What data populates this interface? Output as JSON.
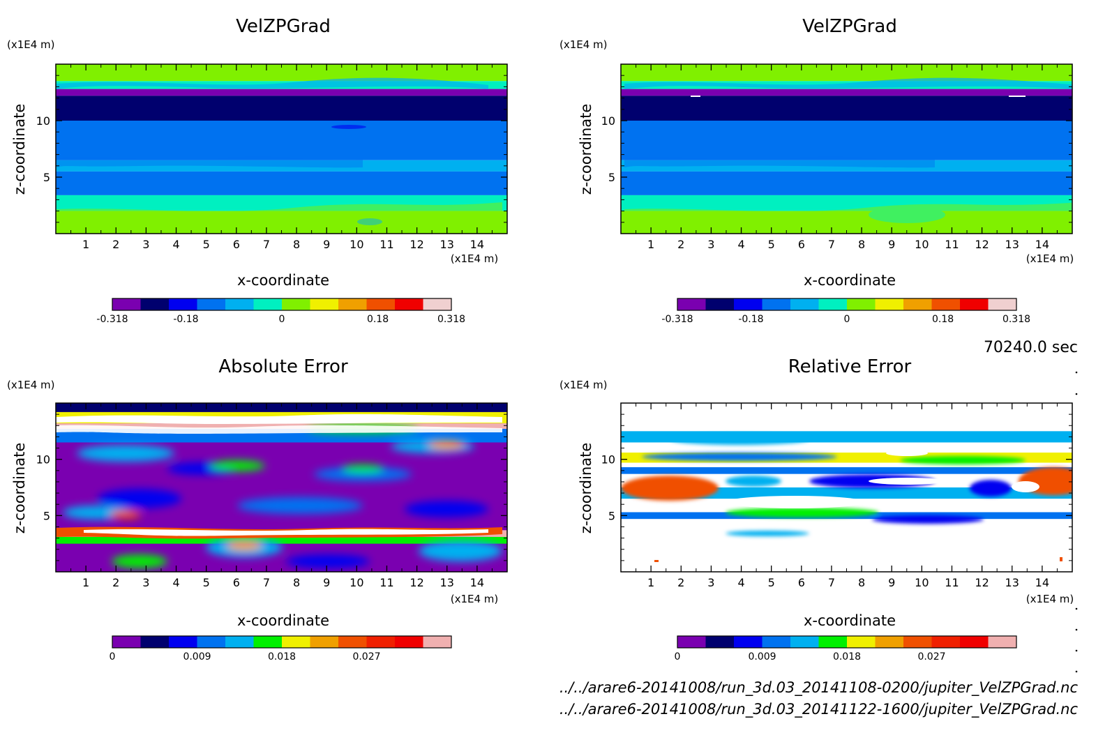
{
  "figure": {
    "time_label": "70240.0 sec",
    "file_paths": [
      "../../arare6-20141008/run_3d.03_20141108-0200/jupiter_VelZPGrad.nc",
      "../../arare6-20141008/run_3d.03_20141122-1600/jupiter_VelZPGrad.nc"
    ]
  },
  "chart_data": [
    {
      "type": "heatmap",
      "title": "VelZPGrad",
      "xlabel": "x-coordinate",
      "ylabel": "z-coordinate",
      "x_unit": "(x1E4 m)",
      "y_unit": "(x1E4 m)",
      "xlim": [
        0,
        15
      ],
      "ylim": [
        0,
        15
      ],
      "x_ticks": [
        1,
        2,
        3,
        4,
        5,
        6,
        7,
        8,
        9,
        10,
        11,
        12,
        13,
        14
      ],
      "y_ticks": [
        5,
        10
      ],
      "colorbar_levels": [
        -0.318,
        -0.265,
        -0.212,
        -0.159,
        -0.106,
        -0.053,
        0,
        0.053,
        0.106,
        0.159,
        0.212,
        0.265,
        0.318
      ],
      "colorbar_tick_labels": [
        "-0.318",
        "-0.18",
        "0",
        "0.18",
        "0.318"
      ],
      "colorbar_colors": [
        "#7a00b0",
        "#00006e",
        "#0000f0",
        "#0072f0",
        "#00b0f0",
        "#00f0c0",
        "#80f000",
        "#f0f000",
        "#f0a000",
        "#f05000",
        "#f00000",
        "#f0d0d0"
      ],
      "bands": [
        {
          "z_from": 13.5,
          "z_to": 15,
          "value": 0.05
        },
        {
          "z_from": 12.8,
          "z_to": 13.5,
          "value": -0.02
        },
        {
          "z_from": 12.2,
          "z_to": 12.8,
          "value": -0.3
        },
        {
          "z_from": 10,
          "z_to": 12.2,
          "value": -0.24
        },
        {
          "z_from": 6.5,
          "z_to": 10,
          "value": -0.14
        },
        {
          "z_from": 5.5,
          "z_to": 6.5,
          "value": -0.09
        },
        {
          "z_from": 3.4,
          "z_to": 5.5,
          "value": -0.12
        },
        {
          "z_from": 2,
          "z_to": 3.4,
          "value": -0.03
        },
        {
          "z_from": 0,
          "z_to": 2,
          "value": 0.05
        }
      ]
    },
    {
      "type": "heatmap",
      "title": "VelZPGrad",
      "xlabel": "x-coordinate",
      "ylabel": "z-coordinate",
      "x_unit": "(x1E4 m)",
      "y_unit": "(x1E4 m)",
      "xlim": [
        0,
        15
      ],
      "ylim": [
        0,
        15
      ],
      "x_ticks": [
        1,
        2,
        3,
        4,
        5,
        6,
        7,
        8,
        9,
        10,
        11,
        12,
        13,
        14
      ],
      "y_ticks": [
        5,
        10
      ],
      "colorbar_levels": [
        -0.318,
        -0.265,
        -0.212,
        -0.159,
        -0.106,
        -0.053,
        0,
        0.053,
        0.106,
        0.159,
        0.212,
        0.265,
        0.318
      ],
      "colorbar_tick_labels": [
        "-0.318",
        "-0.18",
        "0",
        "0.18",
        "0.318"
      ],
      "colorbar_colors": [
        "#7a00b0",
        "#00006e",
        "#0000f0",
        "#0072f0",
        "#00b0f0",
        "#00f0c0",
        "#80f000",
        "#f0f000",
        "#f0a000",
        "#f05000",
        "#f00000",
        "#f0d0d0"
      ],
      "bands": [
        {
          "z_from": 13.5,
          "z_to": 15,
          "value": 0.05
        },
        {
          "z_from": 12.8,
          "z_to": 13.5,
          "value": -0.02
        },
        {
          "z_from": 12.2,
          "z_to": 12.8,
          "value": -0.3
        },
        {
          "z_from": 10,
          "z_to": 12.2,
          "value": -0.24
        },
        {
          "z_from": 6.5,
          "z_to": 10,
          "value": -0.14
        },
        {
          "z_from": 5.5,
          "z_to": 6.5,
          "value": -0.09
        },
        {
          "z_from": 3.4,
          "z_to": 5.5,
          "value": -0.12
        },
        {
          "z_from": 2,
          "z_to": 3.4,
          "value": -0.03
        },
        {
          "z_from": 0,
          "z_to": 2,
          "value": 0.05
        }
      ]
    },
    {
      "type": "heatmap",
      "title": "Absolute Error",
      "xlabel": "x-coordinate",
      "ylabel": "z-coordinate",
      "x_unit": "(x1E4 m)",
      "y_unit": "(x1E4 m)",
      "xlim": [
        0,
        15
      ],
      "ylim": [
        0,
        15
      ],
      "x_ticks": [
        1,
        2,
        3,
        4,
        5,
        6,
        7,
        8,
        9,
        10,
        11,
        12,
        13,
        14
      ],
      "y_ticks": [
        5,
        10
      ],
      "colorbar_levels": [
        0,
        0.003,
        0.006,
        0.009,
        0.012,
        0.015,
        0.018,
        0.021,
        0.024,
        0.027,
        0.03,
        0.033,
        0.036
      ],
      "colorbar_tick_labels": [
        "0",
        "0.009",
        "0.018",
        "0.027"
      ],
      "colorbar_colors": [
        "#7a00b0",
        "#00006e",
        "#0000f0",
        "#0072f0",
        "#00b0f0",
        "#00f000",
        "#f0f000",
        "#f0a000",
        "#f05000",
        "#f02000",
        "#f00000",
        "#f0b0b0"
      ],
      "background": "#7a00b0",
      "bands": [
        {
          "z_from": 14.2,
          "z_to": 15,
          "value": 0.004
        },
        {
          "z_from": 13.2,
          "z_to": 14.2,
          "value": 0.02
        },
        {
          "z_from": 12.7,
          "z_to": 13.2,
          "value": 0.04
        },
        {
          "z_from": 11.5,
          "z_to": 12.7,
          "value": 0.011
        },
        {
          "z_from": 3.1,
          "z_to": 3.7,
          "value": 0.04
        },
        {
          "z_from": 2.5,
          "z_to": 3.1,
          "value": 0.015
        }
      ]
    },
    {
      "type": "heatmap",
      "title": "Relative Error",
      "xlabel": "x-coordinate",
      "ylabel": "z-coordinate",
      "x_unit": "(x1E4 m)",
      "y_unit": "(x1E4 m)",
      "xlim": [
        0,
        15
      ],
      "ylim": [
        0,
        15
      ],
      "x_ticks": [
        1,
        2,
        3,
        4,
        5,
        6,
        7,
        8,
        9,
        10,
        11,
        12,
        13,
        14
      ],
      "y_ticks": [
        5,
        10
      ],
      "colorbar_levels": [
        0,
        0.003,
        0.006,
        0.009,
        0.012,
        0.015,
        0.018,
        0.021,
        0.024,
        0.027,
        0.03,
        0.033,
        0.036
      ],
      "colorbar_tick_labels": [
        "0",
        "0.009",
        "0.018",
        "0.027"
      ],
      "colorbar_colors": [
        "#7a00b0",
        "#00006e",
        "#0000f0",
        "#0072f0",
        "#00b0f0",
        "#00f000",
        "#f0f000",
        "#f0a000",
        "#f05000",
        "#f02000",
        "#f00000",
        "#f0b0b0"
      ],
      "background": "#ffffff",
      "bands": [
        {
          "z_from": 11.5,
          "z_to": 12.5,
          "value": 0.012
        },
        {
          "z_from": 9.7,
          "z_to": 10.6,
          "value": 0.02
        },
        {
          "z_from": 8.7,
          "z_to": 9.3,
          "value": 0.009
        },
        {
          "z_from": 6.5,
          "z_to": 7.5,
          "value": 0.014
        },
        {
          "z_from": 4.7,
          "z_to": 5.3,
          "value": 0.01
        }
      ]
    }
  ]
}
